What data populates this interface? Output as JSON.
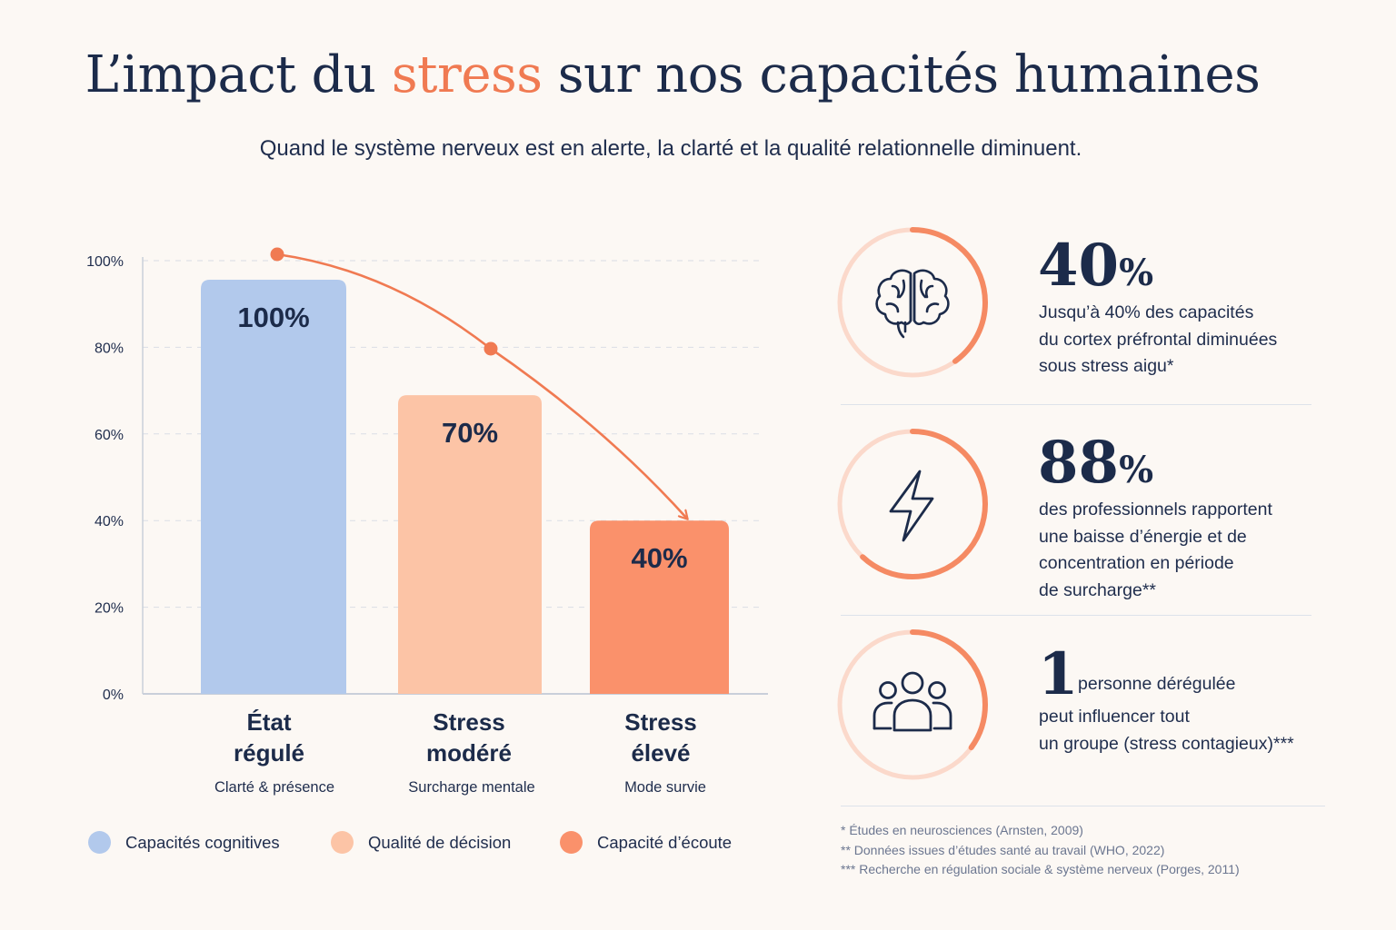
{
  "header": {
    "title_before": "L’impact du ",
    "title_accent": "stress",
    "title_after": " sur nos capacités humaines",
    "subtitle": "Quand le système nerveux est en alerte, la clarté et la qualité relationnelle diminuent."
  },
  "colors": {
    "navy": "#1c2b4a",
    "accent": "#f07a52",
    "blue": "#b2c9ec",
    "peach": "#fcc4a6",
    "coral": "#fa916b",
    "ring_light": "#fbd9cb",
    "ring_accent": "#f58a63"
  },
  "chart_data": {
    "type": "bar",
    "categories": [
      {
        "line1": "État",
        "line2": "régulé",
        "sub": "Clarté & présence"
      },
      {
        "line1": "Stress",
        "line2": "modéré",
        "sub": "Surcharge mentale"
      },
      {
        "line1": "Stress",
        "line2": "élevé",
        "sub": "Mode survie"
      }
    ],
    "values": [
      100,
      70,
      40
    ],
    "value_labels": [
      "100%",
      "70%",
      "40%"
    ],
    "series_colors": [
      "#b2c9ec",
      "#fcc4a6",
      "#fa916b"
    ],
    "ylim": [
      0,
      100
    ],
    "yticks": [
      0,
      20,
      40,
      60,
      80,
      100
    ],
    "ytick_labels": [
      "0%",
      "20%",
      "40%",
      "60%",
      "80%",
      "100%"
    ],
    "grid": true,
    "trend_arrow": true,
    "legend": [
      {
        "label": "Capacités cognitives",
        "color": "#b2c9ec"
      },
      {
        "label": "Qualité de décision",
        "color": "#fcc4a6"
      },
      {
        "label": "Capacité d’écoute",
        "color": "#fa916b"
      }
    ]
  },
  "stats": [
    {
      "icon": "brain-icon",
      "value": "40",
      "unit": "%",
      "progress": 0.4,
      "desc": [
        "Jusqu’à 40% des capacités",
        "du cortex préfrontal diminuées",
        "sous stress aigu*"
      ]
    },
    {
      "icon": "lightning-icon",
      "value": "88",
      "unit": "%",
      "progress": 0.62,
      "desc": [
        "des professionnels rapportent",
        "une baisse d’énergie et de",
        "concentration en période",
        "de surcharge**"
      ]
    },
    {
      "icon": "people-group-icon",
      "value": "1",
      "inline": "personne dérégulée",
      "progress": 0.35,
      "desc": [
        "peut influencer tout",
        "un groupe (stress contagieux)***"
      ]
    }
  ],
  "footnotes": [
    "*  Études en neurosciences (Arnsten, 2009)",
    "** Données issues d’études santé au travail (WHO, 2022)",
    "*** Recherche en régulation sociale & système nerveux (Porges, 2011)"
  ]
}
